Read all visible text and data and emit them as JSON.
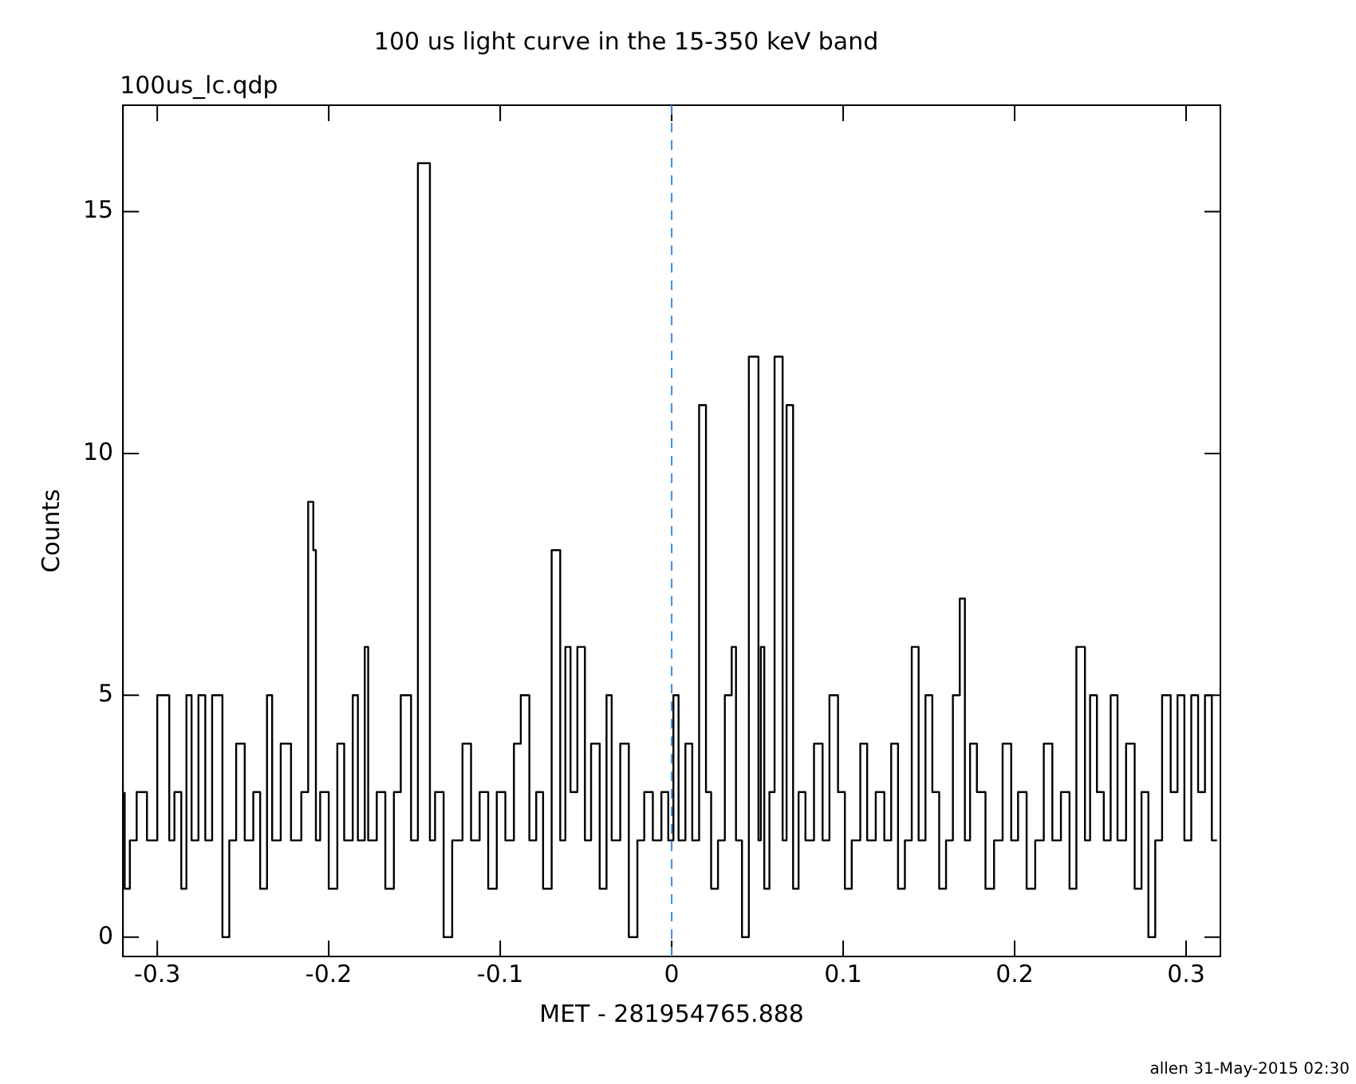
{
  "chart_data": {
    "type": "step",
    "title": "100 us light curve in the 15-350 keV band",
    "xlabel": "MET - 281954765.888",
    "ylabel": "Counts",
    "annotations": [
      "100us_lc.qdp",
      "allen 31-May-2015 02:30"
    ],
    "xlim": [
      -0.32,
      0.32
    ],
    "xticks": [
      -0.3,
      -0.2,
      -0.1,
      0,
      0.1,
      0.2,
      0.3
    ],
    "ylim": [
      -0.4,
      17.2
    ],
    "yticks": [
      0,
      5,
      10,
      15
    ],
    "grid": false,
    "legend": false,
    "ref_lines": [
      {
        "axis": "x",
        "value": 0,
        "color": "#3c8fe0",
        "line_style": "dashed"
      }
    ],
    "x": [
      -0.319,
      -0.316,
      -0.312,
      -0.306,
      -0.3,
      -0.293,
      -0.29,
      -0.286,
      -0.283,
      -0.28,
      -0.276,
      -0.272,
      -0.268,
      -0.262,
      -0.258,
      -0.254,
      -0.249,
      -0.244,
      -0.24,
      -0.236,
      -0.233,
      -0.228,
      -0.222,
      -0.216,
      -0.212,
      -0.209,
      -0.2075,
      -0.205,
      -0.2,
      -0.195,
      -0.191,
      -0.186,
      -0.183,
      -0.179,
      -0.177,
      -0.172,
      -0.167,
      -0.162,
      -0.158,
      -0.152,
      -0.148,
      -0.141,
      -0.138,
      -0.133,
      -0.128,
      -0.122,
      -0.117,
      -0.112,
      -0.107,
      -0.102,
      -0.097,
      -0.092,
      -0.088,
      -0.083,
      -0.079,
      -0.075,
      -0.07,
      -0.065,
      -0.062,
      -0.059,
      -0.055,
      -0.0506,
      -0.047,
      -0.042,
      -0.038,
      -0.035,
      -0.03,
      -0.025,
      -0.02,
      -0.016,
      -0.011,
      -0.006,
      -0.002,
      0.001,
      0.004,
      0.008,
      0.012,
      0.016,
      0.02,
      0.023,
      0.027,
      0.031,
      0.035,
      0.0375,
      0.041,
      0.045,
      0.0506,
      0.052,
      0.054,
      0.057,
      0.06,
      0.0647,
      0.067,
      0.0708,
      0.074,
      0.078,
      0.083,
      0.088,
      0.092,
      0.097,
      0.101,
      0.105,
      0.11,
      0.114,
      0.119,
      0.124,
      0.128,
      0.132,
      0.136,
      0.14,
      0.144,
      0.148,
      0.152,
      0.156,
      0.16,
      0.164,
      0.168,
      0.171,
      0.174,
      0.178,
      0.183,
      0.188,
      0.193,
      0.198,
      0.202,
      0.207,
      0.212,
      0.217,
      0.222,
      0.227,
      0.232,
      0.236,
      0.241,
      0.244,
      0.248,
      0.252,
      0.256,
      0.26,
      0.265,
      0.27,
      0.274,
      0.278,
      0.282,
      0.286,
      0.291,
      0.295,
      0.299,
      0.303,
      0.307,
      0.311,
      0.315,
      0.318
    ],
    "series": [
      {
        "color": "#000000",
        "values": [
          3,
          1,
          2,
          3,
          2,
          5,
          2,
          3,
          1,
          5,
          2,
          5,
          2,
          5,
          0,
          2,
          4,
          2,
          3,
          1,
          5,
          2,
          4,
          2,
          3,
          9,
          8,
          2,
          3,
          1,
          4,
          2,
          5,
          2,
          6,
          2,
          3,
          1,
          3,
          5,
          2,
          16,
          2,
          3,
          0,
          2,
          4,
          2,
          3,
          1,
          3,
          2,
          4,
          5,
          2,
          3,
          1,
          8,
          2,
          6,
          3,
          6,
          2,
          4,
          1,
          5,
          2,
          4,
          0,
          2,
          3,
          2,
          3,
          2,
          5,
          2,
          4,
          2,
          11,
          3,
          1,
          2,
          5,
          6,
          2,
          0,
          12,
          2,
          6,
          1,
          3,
          12,
          2,
          11,
          1,
          3,
          2,
          4,
          2,
          5,
          3,
          1,
          2,
          4,
          2,
          3,
          2,
          4,
          1,
          2,
          6,
          2,
          5,
          3,
          1,
          2,
          5,
          7,
          2,
          4,
          3,
          1,
          2,
          4,
          2,
          3,
          1,
          2,
          4,
          2,
          3,
          1,
          6,
          2,
          5,
          3,
          2,
          5,
          2,
          4,
          1,
          3,
          0,
          2,
          5,
          3,
          5,
          2,
          5,
          3,
          5,
          2
        ]
      }
    ]
  }
}
